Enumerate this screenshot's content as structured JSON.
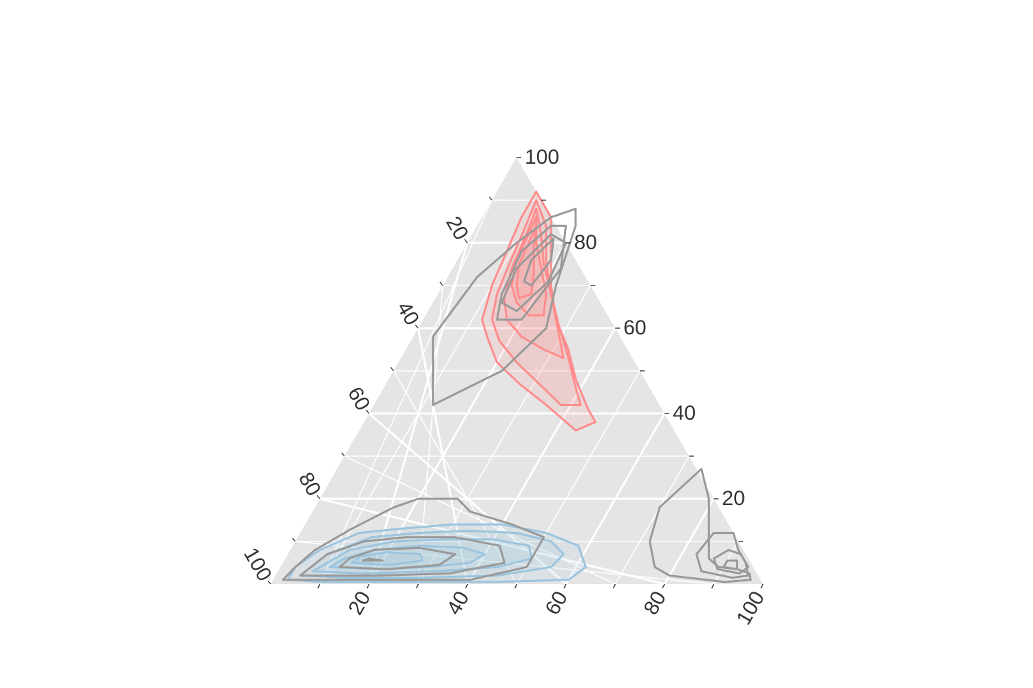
{
  "chart_data": {
    "type": "ternary",
    "title": "",
    "axes": {
      "bottom": {
        "label": "",
        "ticks": [
          20,
          40,
          60,
          80,
          100
        ]
      },
      "left": {
        "label": "",
        "ticks": [
          20,
          40,
          60,
          80,
          100
        ]
      },
      "right": {
        "label": "",
        "ticks": [
          20,
          40,
          60,
          80,
          100
        ]
      }
    },
    "grid": true,
    "panel_background": "#e5e5e5",
    "legend": "none",
    "series": [
      {
        "color": "#ff8c8c",
        "kind": "density-contours-filled",
        "levels": [
          [
            [
              8,
              92
            ],
            [
              14,
              86
            ],
            [
              18,
              78
            ],
            [
              22,
              70
            ],
            [
              27,
              62
            ],
            [
              33,
              55
            ],
            [
              38,
              48
            ],
            [
              44,
              41
            ],
            [
              47,
              38
            ],
            [
              44,
              36
            ],
            [
              35,
              42
            ],
            [
              27,
              47
            ],
            [
              20,
              52
            ],
            [
              15,
              58
            ],
            [
              12,
              62
            ],
            [
              10,
              70
            ],
            [
              9,
              78
            ],
            [
              8,
              86
            ]
          ],
          [
            [
              9,
              90
            ],
            [
              14,
              84
            ],
            [
              18,
              76
            ],
            [
              23,
              68
            ],
            [
              28,
              61
            ],
            [
              34,
              53
            ],
            [
              39,
              46
            ],
            [
              42,
              42
            ],
            [
              38,
              42
            ],
            [
              31,
              47
            ],
            [
              24,
              52
            ],
            [
              18,
              57
            ],
            [
              14,
              62
            ],
            [
              12,
              68
            ],
            [
              11,
              75
            ],
            [
              10,
              83
            ]
          ],
          [
            [
              10,
              88
            ],
            [
              14,
              82
            ],
            [
              18,
              75
            ],
            [
              23,
              68
            ],
            [
              29,
              59
            ],
            [
              33,
              53
            ],
            [
              28,
              55
            ],
            [
              22,
              58
            ],
            [
              17,
              62
            ],
            [
              14,
              67
            ],
            [
              12,
              74
            ],
            [
              11,
              82
            ]
          ],
          [
            [
              11,
              86
            ],
            [
              14,
              80
            ],
            [
              18,
              74
            ],
            [
              22,
              68
            ],
            [
              24,
              63
            ],
            [
              21,
              63
            ],
            [
              17,
              66
            ],
            [
              14,
              70
            ],
            [
              12,
              76
            ]
          ],
          [
            [
              12,
              84
            ],
            [
              14,
              79
            ],
            [
              17,
              73
            ],
            [
              19,
              68
            ],
            [
              17,
              67
            ],
            [
              15,
              70
            ],
            [
              13,
              75
            ]
          ]
        ]
      },
      {
        "color": "#9cc4de",
        "kind": "density-contours-filled",
        "levels": [
          [
            [
              3,
              1
            ],
            [
              10,
              0.5
            ],
            [
              25,
              0.5
            ],
            [
              45,
              0.5
            ],
            [
              60,
              1
            ],
            [
              62,
              4
            ],
            [
              58,
              9
            ],
            [
              50,
              12
            ],
            [
              40,
              14
            ],
            [
              30,
              14
            ],
            [
              20,
              13
            ],
            [
              12,
              12
            ],
            [
              6,
              8
            ],
            [
              3,
              4
            ]
          ],
          [
            [
              5,
              2
            ],
            [
              15,
              1.5
            ],
            [
              30,
              1.5
            ],
            [
              45,
              2
            ],
            [
              55,
              4
            ],
            [
              56,
              7
            ],
            [
              52,
              10
            ],
            [
              44,
              12
            ],
            [
              34,
              12.5
            ],
            [
              24,
              12
            ],
            [
              15,
              11
            ],
            [
              8,
              7
            ]
          ],
          [
            [
              7,
              3
            ],
            [
              18,
              2.5
            ],
            [
              32,
              3
            ],
            [
              44,
              4
            ],
            [
              50,
              6
            ],
            [
              48,
              9
            ],
            [
              40,
              10.5
            ],
            [
              30,
              10.5
            ],
            [
              20,
              10
            ],
            [
              12,
              8
            ]
          ],
          [
            [
              10,
              4
            ],
            [
              20,
              3.5
            ],
            [
              30,
              4
            ],
            [
              38,
              5
            ],
            [
              40,
              7
            ],
            [
              35,
              8.5
            ],
            [
              26,
              9
            ],
            [
              17,
              8
            ],
            [
              12,
              6
            ]
          ],
          [
            [
              14,
              5
            ],
            [
              22,
              4.5
            ],
            [
              28,
              5.5
            ],
            [
              27,
              7
            ],
            [
              20,
              7.5
            ],
            [
              15,
              6.5
            ]
          ]
        ]
      },
      {
        "color": "#999999",
        "kind": "density-contours",
        "levels": [
          [
            [
              2,
              1
            ],
            [
              20,
              1
            ],
            [
              40,
              1
            ],
            [
              50,
              4
            ],
            [
              50,
              11
            ],
            [
              42,
              14
            ],
            [
              32,
              17
            ],
            [
              28,
              20
            ],
            [
              20,
              20
            ],
            [
              16,
              18
            ],
            [
              10,
              13
            ],
            [
              5,
              8
            ],
            [
              3,
              4
            ]
          ],
          [
            [
              5,
              2
            ],
            [
              20,
              2
            ],
            [
              35,
              2.5
            ],
            [
              45,
              5
            ],
            [
              42,
              9
            ],
            [
              32,
              11
            ],
            [
              22,
              11
            ],
            [
              14,
              10
            ],
            [
              8,
              7
            ]
          ],
          [
            [
              12,
              4
            ],
            [
              22,
              3.5
            ],
            [
              32,
              4.5
            ],
            [
              34,
              7
            ],
            [
              26,
              8.5
            ],
            [
              17,
              8
            ],
            [
              13,
              6
            ]
          ],
          [
            [
              16,
              5.5
            ],
            [
              20,
              5.5
            ],
            [
              17,
              6
            ]
          ],
          [
            [
              10,
              80
            ],
            [
              14,
              86
            ],
            [
              18,
              88
            ],
            [
              20,
              84
            ],
            [
              23,
              70
            ],
            [
              26,
              60
            ],
            [
              22,
              50
            ],
            [
              12,
              42
            ],
            [
              4,
              58
            ],
            [
              6,
              72
            ]
          ],
          [
            [
              13,
              74
            ],
            [
              16,
              82
            ],
            [
              20,
              80
            ],
            [
              21,
              71
            ],
            [
              18,
              64
            ],
            [
              14,
              66
            ]
          ],
          [
            [
              15,
              76
            ],
            [
              17,
              81
            ],
            [
              19,
              76
            ],
            [
              18,
              70
            ],
            [
              16,
              71
            ]
          ],
          [
            [
              12,
              78
            ],
            [
              15,
              84
            ],
            [
              18,
              84
            ],
            [
              22,
              74
            ],
            [
              20,
              62
            ],
            [
              15,
              62
            ],
            [
              13,
              68
            ]
          ],
          [
            [
              80,
              2
            ],
            [
              92,
              0.5
            ],
            [
              97,
              1
            ],
            [
              96,
              2.5
            ],
            [
              93,
              3.5
            ],
            [
              89,
              4
            ],
            [
              86,
              6
            ],
            [
              84,
              10
            ],
            [
              82,
              14
            ],
            [
              79,
              20
            ],
            [
              74,
              27
            ],
            [
              70,
              18
            ],
            [
              72,
              10
            ],
            [
              76,
              4
            ]
          ],
          [
            [
              86,
              3
            ],
            [
              93,
              1.5
            ],
            [
              96,
              2
            ],
            [
              94,
              5
            ],
            [
              91,
              8
            ],
            [
              88,
              12
            ],
            [
              84,
              12
            ],
            [
              83,
              7
            ]
          ],
          [
            [
              89,
              3.5
            ],
            [
              94,
              2.5
            ],
            [
              95,
              4
            ],
            [
              92,
              7
            ],
            [
              89,
              8
            ],
            [
              87,
              6
            ]
          ],
          [
            [
              90,
              4
            ],
            [
              93,
              3.5
            ],
            [
              92,
              5.5
            ],
            [
              90,
              5.5
            ]
          ]
        ]
      }
    ]
  }
}
